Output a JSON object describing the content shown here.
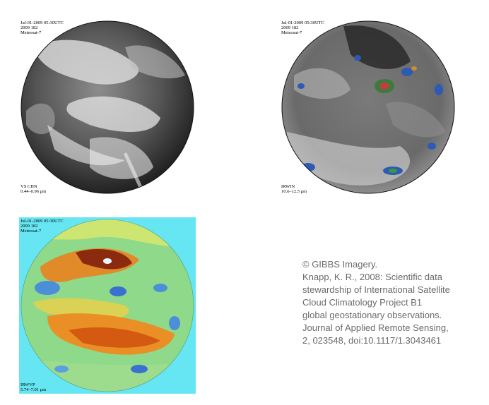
{
  "panels": [
    {
      "id": "vis",
      "header": [
        "Jul-01-2009 05:30UTC",
        "2009 182",
        "Meteosat-7"
      ],
      "band": "VS CHN",
      "range": "0.44–0.96 μm"
    },
    {
      "id": "ir",
      "header": [
        "Jul-01-2009 05:30UTC",
        "2009 182",
        "Meteosat-7"
      ],
      "band": "IRWIN",
      "range": "10.6–12.5 μm"
    },
    {
      "id": "wv",
      "header": [
        "Jul-01-2009 05:30UTC",
        "2009 182",
        "Meteosat-7"
      ],
      "band": "IRWVP",
      "range": "5.74–7.01 μm"
    }
  ],
  "credit": [
    "© GIBBS Imagery.",
    "Knapp, K. R., 2008: Scientific data",
    "stewardship of International Satellite",
    "Cloud Climatology Project B1",
    "global geostationary observations.",
    "Journal of Applied Remote Sensing,",
    "2, 023548, doi:10.1117/1.3043461"
  ]
}
